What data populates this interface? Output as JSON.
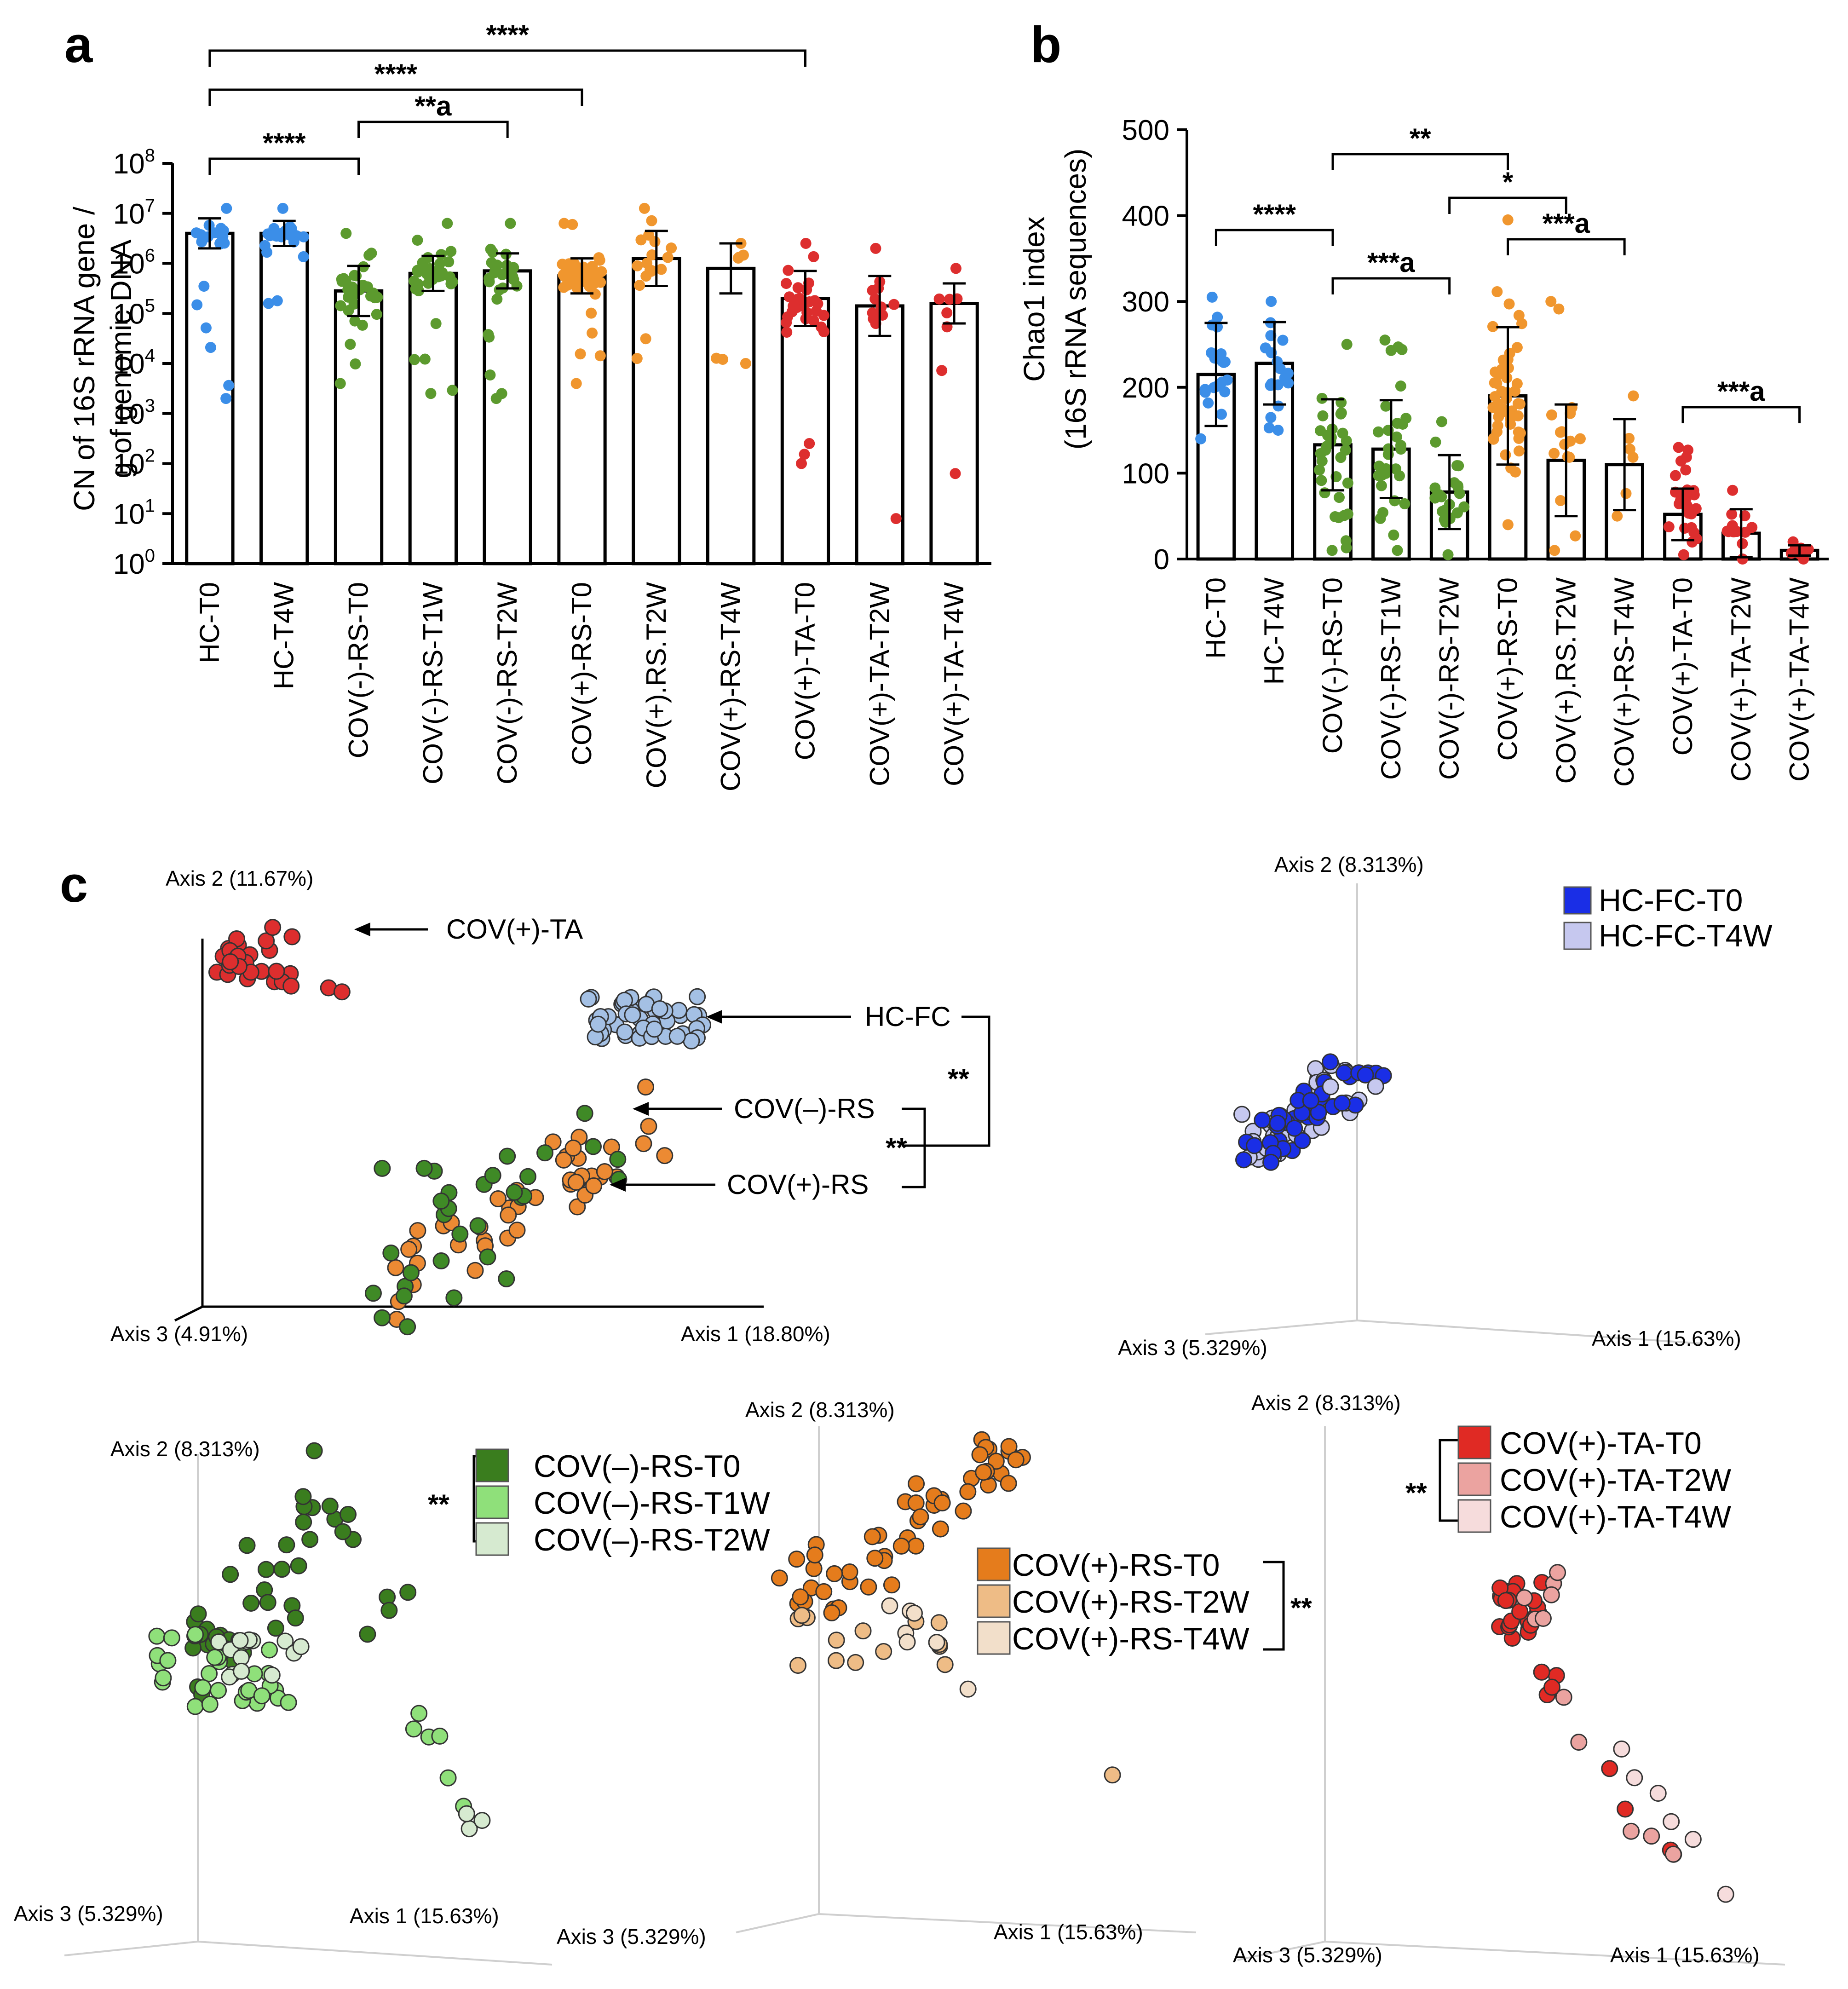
{
  "panels": {
    "a": "a",
    "b": "b",
    "c": "c"
  },
  "colors": {
    "hc": "#3b8ee8",
    "rs_neg": "#5c9a2e",
    "rs_pos": "#f0962e",
    "ta": "#dd2e2e"
  },
  "chart_data": [
    {
      "id": "a",
      "type": "bar",
      "scale": "log10",
      "ylabel_line1": "CN of 16S rRNA gene /",
      "ylabel_line2": "g of genomic DNA",
      "ylim": [
        0,
        8
      ],
      "yticks": [
        0,
        1,
        2,
        3,
        4,
        5,
        6,
        7,
        8
      ],
      "categories": [
        "HC-T0",
        "HC-T4W",
        "COV(-)-RS-T0",
        "COV(-)-RS-T1W",
        "COV(-)-RS-T2W",
        "COV(+)-RS-T0",
        "COV(+).RS.T2W",
        "COV(+)-RS-T4W",
        "COV(+)-TA-T0",
        "COV(+)-TA-T2W",
        "COV(+)-TA-T4W"
      ],
      "groups": [
        "hc",
        "hc",
        "rs_neg",
        "rs_neg",
        "rs_neg",
        "rs_pos",
        "rs_pos",
        "rs_pos",
        "ta",
        "ta",
        "ta"
      ],
      "means_log10": [
        6.6,
        6.6,
        5.45,
        5.8,
        5.85,
        5.75,
        6.1,
        5.9,
        5.3,
        5.15,
        5.2
      ],
      "sd_upper_log10": [
        6.9,
        6.85,
        5.95,
        6.15,
        6.2,
        6.1,
        6.65,
        6.4,
        5.85,
        5.75,
        5.6
      ],
      "sd_lower_log10": [
        6.3,
        6.35,
        4.95,
        5.45,
        5.5,
        5.4,
        5.55,
        5.4,
        4.75,
        4.55,
        4.8
      ],
      "point_counts": [
        20,
        20,
        32,
        34,
        26,
        48,
        18,
        7,
        30,
        12,
        8
      ],
      "point_ranges_log10": [
        [
          3.3,
          7.1
        ],
        [
          5.2,
          7.1
        ],
        [
          3.6,
          6.6
        ],
        [
          3.4,
          6.8
        ],
        [
          3.3,
          6.8
        ],
        [
          3.6,
          6.8
        ],
        [
          4.1,
          7.1
        ],
        [
          4.0,
          6.4
        ],
        [
          2.0,
          6.4
        ],
        [
          0.9,
          6.3
        ],
        [
          1.8,
          5.9
        ]
      ],
      "comparisons": [
        {
          "from": 0,
          "to": 8,
          "label": "****"
        },
        {
          "from": 0,
          "to": 5,
          "label": "****"
        },
        {
          "from": 2,
          "to": 4,
          "label": "**a"
        },
        {
          "from": 0,
          "to": 2,
          "label": "****"
        }
      ]
    },
    {
      "id": "b",
      "type": "bar",
      "scale": "linear",
      "ylabel_line1": "Chao1 index",
      "ylabel_line2": "(16S rRNA sequences)",
      "ylim": [
        0,
        500
      ],
      "yticks": [
        0,
        100,
        200,
        300,
        400,
        500
      ],
      "categories": [
        "HC-T0",
        "HC-T4W",
        "COV(-)-RS-T0",
        "COV(-)-RS-T1W",
        "COV(-)-RS-T2W",
        "COV(+)-RS-T0",
        "COV(+).RS.T2W",
        "COV(+)-RS-T4W",
        "COV(+)-TA-T0",
        "COV(+)-TA-T2W",
        "COV(+)-TA-T4W"
      ],
      "groups": [
        "hc",
        "hc",
        "rs_neg",
        "rs_neg",
        "rs_neg",
        "rs_pos",
        "rs_pos",
        "rs_pos",
        "ta",
        "ta",
        "ta"
      ],
      "means": [
        215,
        228,
        133,
        128,
        78,
        190,
        115,
        110,
        52,
        30,
        10
      ],
      "sd": [
        60,
        48,
        53,
        57,
        43,
        80,
        65,
        53,
        30,
        28,
        6
      ],
      "point_counts": [
        20,
        18,
        32,
        30,
        22,
        48,
        16,
        6,
        28,
        12,
        8
      ],
      "point_ranges": [
        [
          140,
          305
        ],
        [
          150,
          300
        ],
        [
          10,
          250
        ],
        [
          10,
          255
        ],
        [
          5,
          160
        ],
        [
          40,
          395
        ],
        [
          10,
          300
        ],
        [
          50,
          190
        ],
        [
          5,
          130
        ],
        [
          0,
          80
        ],
        [
          0,
          20
        ]
      ],
      "comparisons": [
        {
          "from": 2,
          "to": 5,
          "label": "**"
        },
        {
          "from": 4,
          "to": 6,
          "label": "*"
        },
        {
          "from": 0,
          "to": 2,
          "label": "****"
        },
        {
          "from": 5,
          "to": 7,
          "label": "***a"
        },
        {
          "from": 2,
          "to": 4,
          "label": "***a"
        },
        {
          "from": 8,
          "to": 10,
          "label": "***a"
        }
      ]
    },
    {
      "id": "c1",
      "type": "scatter",
      "axis1": "Axis 1 (18.80%)",
      "axis2": "Axis 2 (11.67%)",
      "axis3": "Axis 3 (4.91%)",
      "groups": [
        {
          "name": "COV(+)-TA",
          "color": "ta",
          "count": 28
        },
        {
          "name": "HC-FC",
          "color": "hc_light",
          "count": 55
        },
        {
          "name": "COV(–)-RS",
          "color": "rs_neg",
          "count": 30
        },
        {
          "name": "COV(+)-RS",
          "color": "rs_pos",
          "count": 48
        }
      ],
      "significance": [
        "**",
        "**"
      ]
    },
    {
      "id": "c2",
      "type": "scatter",
      "axis1": "Axis 1 (15.63%)",
      "axis2": "Axis 2 (8.313%)",
      "axis3": "Axis 3 (5.329%)",
      "legend": [
        {
          "name": "HC-FC-T0",
          "color": "#1a2ee6"
        },
        {
          "name": "HC-FC-T4W",
          "color": "#c6c8ef"
        }
      ]
    },
    {
      "id": "c3",
      "type": "scatter",
      "axis1": "Axis 1 (15.63%)",
      "axis2": "Axis 2 (8.313%)",
      "axis3": "Axis 3 (5.329%)",
      "legend": [
        {
          "name": "COV(–)-RS-T0",
          "color": "#3a7d1e"
        },
        {
          "name": "COV(–)-RS-T1W",
          "color": "#8fe07a"
        },
        {
          "name": "COV(–)-RS-T2W",
          "color": "#d6ead0"
        }
      ],
      "significance": "**"
    },
    {
      "id": "c4",
      "type": "scatter",
      "axis1": "Axis 1 (15.63%)",
      "axis2": "Axis 2 (8.313%)",
      "axis3": "Axis 3 (5.329%)",
      "legend": [
        {
          "name": "COV(+)-RS-T0",
          "color": "#e57c1c"
        },
        {
          "name": "COV(+)-RS-T2W",
          "color": "#eebc86"
        },
        {
          "name": "COV(+)-RS-T4W",
          "color": "#f2dfca"
        }
      ],
      "significance": "**"
    },
    {
      "id": "c5",
      "type": "scatter",
      "axis1": "Axis 1 (15.63%)",
      "axis2": "Axis 2 (8.313%)",
      "axis3": "Axis 3 (5.329%)",
      "legend": [
        {
          "name": "COV(+)-TA-T0",
          "color": "#e02a24"
        },
        {
          "name": "COV(+)-TA-T2W",
          "color": "#eba3a0"
        },
        {
          "name": "COV(+)-TA-T4W",
          "color": "#f6dcdc"
        }
      ],
      "significance": "**"
    }
  ]
}
